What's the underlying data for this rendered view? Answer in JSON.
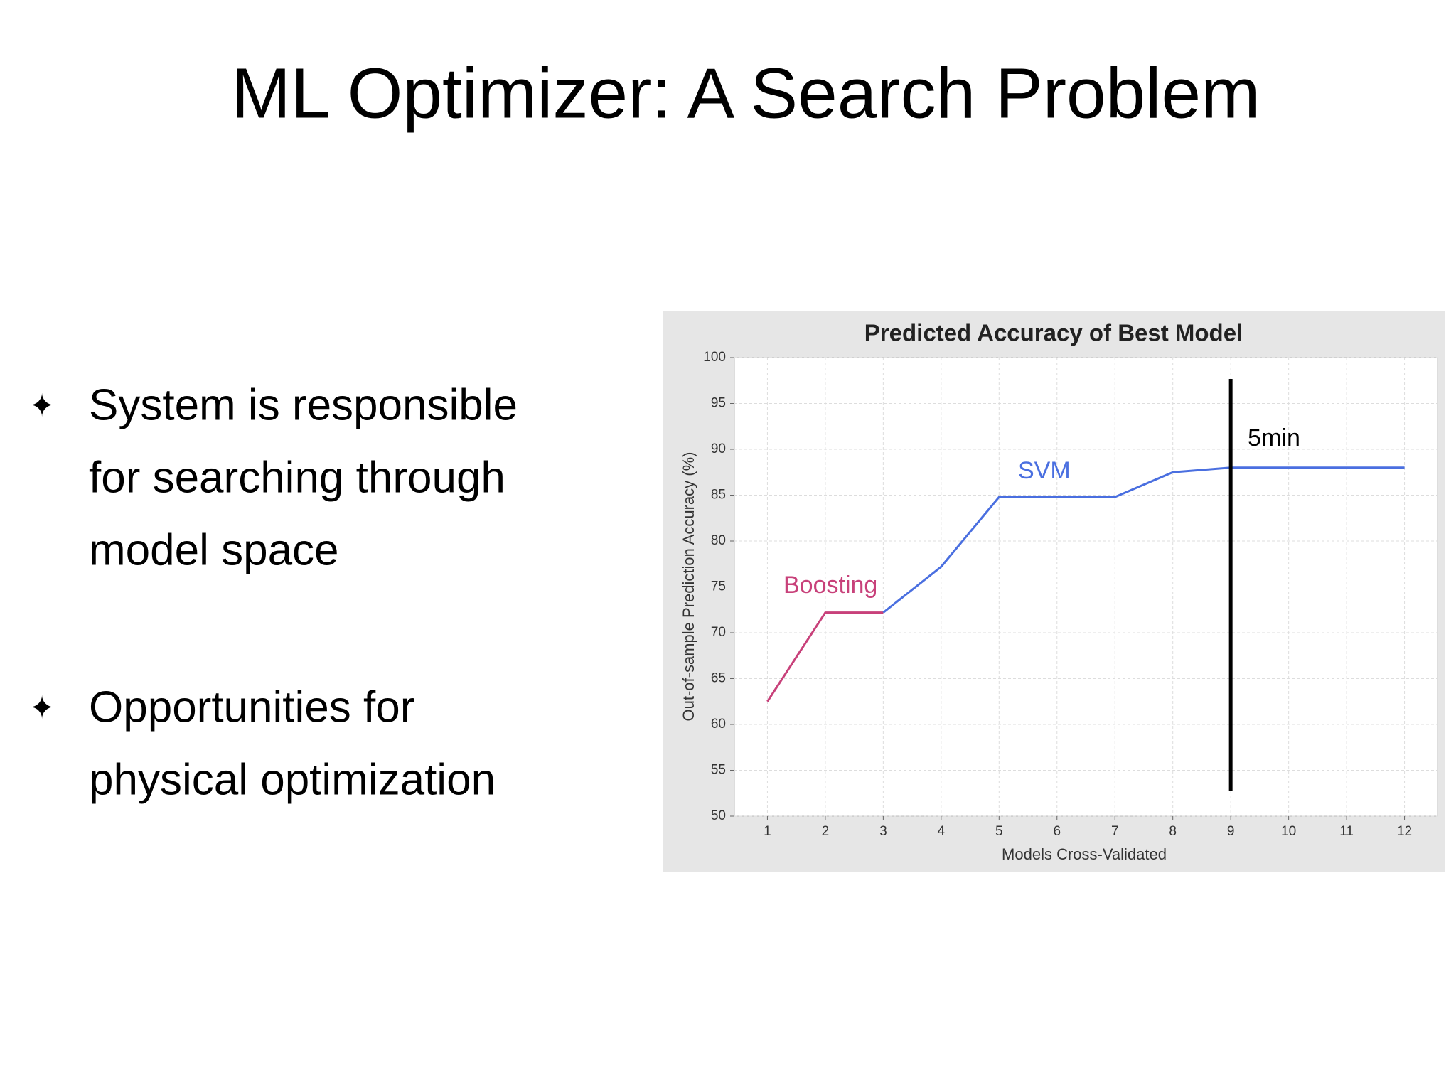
{
  "slide_title": "ML Optimizer: A Search Problem",
  "bullets": [
    {
      "lines": [
        "System is responsible",
        "for searching through",
        "model space"
      ]
    },
    {
      "lines": [
        "Opportunities for",
        "physical optimization"
      ]
    }
  ],
  "chart_data": {
    "type": "line",
    "title": "Predicted Accuracy of Best Model",
    "x_label": "Models Cross-Validated",
    "y_label": "Out-of-sample Prediction Accuracy (%)",
    "series": [
      {
        "name": "Boosting",
        "color": "#c8417a",
        "x": [
          1,
          2,
          3
        ],
        "values": [
          62.5,
          72.2,
          72.2
        ]
      },
      {
        "name": "SVM",
        "color": "#4a6fe0",
        "x": [
          3,
          4,
          5,
          6,
          7,
          8,
          9,
          10,
          11,
          12
        ],
        "values": [
          72.2,
          77.2,
          84.8,
          84.8,
          84.8,
          87.5,
          88,
          88,
          88,
          88
        ]
      }
    ],
    "xlim": [
      0.43,
      12.57
    ],
    "xticks": [
      1,
      2,
      3,
      4,
      5,
      6,
      7,
      8,
      9,
      10,
      11,
      12
    ],
    "ylim": [
      50,
      100
    ],
    "yticks": [
      50,
      55,
      60,
      65,
      70,
      75,
      80,
      85,
      90,
      95,
      100
    ],
    "grid": true,
    "marker_line": {
      "x": 9,
      "label": "5min",
      "color": "#000000"
    }
  }
}
